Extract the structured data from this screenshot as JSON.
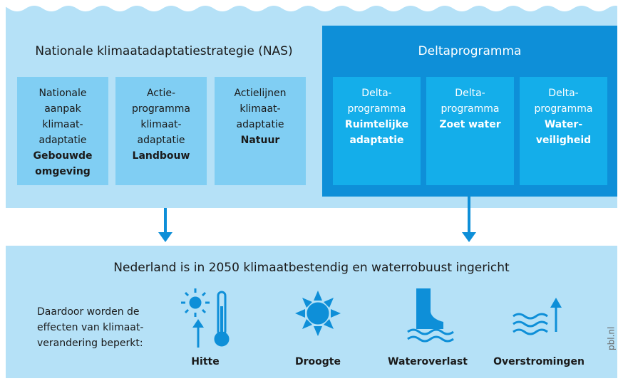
{
  "nas": {
    "title": "Nationale klimaatadaptatiestrategie (NAS)",
    "boxes": [
      {
        "lines": [
          "Nationale",
          "aanpak",
          "klimaat-",
          "adaptatie"
        ],
        "bold_lines": [
          "Gebouwde",
          "omgeving"
        ]
      },
      {
        "lines": [
          "Actie-",
          "programma",
          "klimaat-",
          "adaptatie"
        ],
        "bold_lines": [
          "Landbouw"
        ]
      },
      {
        "lines": [
          "Actielijnen",
          "klimaat-",
          "adaptatie"
        ],
        "bold_lines": [
          "Natuur"
        ]
      }
    ]
  },
  "delta": {
    "title": "Deltaprogramma",
    "boxes": [
      {
        "lines": [
          "Delta-",
          "programma"
        ],
        "bold_lines": [
          "Ruimtelijke",
          "adaptatie"
        ]
      },
      {
        "lines": [
          "Delta-",
          "programma"
        ],
        "bold_lines": [
          "Zoet water"
        ]
      },
      {
        "lines": [
          "Delta-",
          "programma"
        ],
        "bold_lines": [
          "Water-",
          "veiligheid"
        ]
      }
    ]
  },
  "goal": "Nederland is in 2050 klimaatbestendig en waterrobuust ingericht",
  "effects_text": [
    "Daardoor worden de",
    "effecten van klimaat-",
    "verandering beperkt:"
  ],
  "effects": [
    "Hitte",
    "Droogte",
    "Wateroverlast",
    "Overstromingen"
  ],
  "source": "pbl.nl"
}
